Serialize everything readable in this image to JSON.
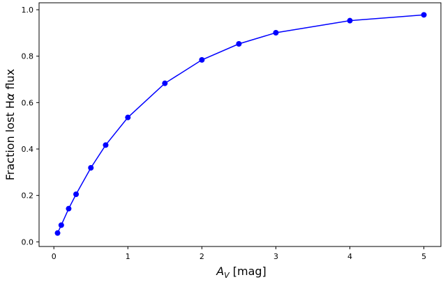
{
  "chart_data": {
    "type": "line",
    "title": "",
    "xlabel_main": "A",
    "xlabel_sub": "V",
    "xlabel_unit": " [mag]",
    "ylabel_prefix": "Fraction lost H",
    "ylabel_greek": "α",
    "ylabel_suffix": " flux",
    "xlim": [
      -0.2,
      5.23
    ],
    "ylim": [
      -0.02,
      1.03
    ],
    "grid": false,
    "xticks": [
      0,
      1,
      2,
      3,
      4,
      5
    ],
    "xtick_labels": [
      "0",
      "1",
      "2",
      "3",
      "4",
      "5"
    ],
    "yticks": [
      0.0,
      0.2,
      0.4,
      0.6,
      0.8,
      1.0
    ],
    "ytick_labels": [
      "0.0",
      "0.2",
      "0.4",
      "0.6",
      "0.8",
      "1.0"
    ],
    "series": [
      {
        "color": "#0000ff",
        "marker": "circle",
        "x": [
          0.05,
          0.1,
          0.2,
          0.3,
          0.5,
          0.7,
          1.0,
          1.5,
          2.0,
          2.5,
          3.0,
          4.0,
          5.0
        ],
        "y": [
          0.038,
          0.072,
          0.143,
          0.205,
          0.319,
          0.417,
          0.536,
          0.683,
          0.784,
          0.853,
          0.901,
          0.953,
          0.978
        ]
      }
    ]
  }
}
